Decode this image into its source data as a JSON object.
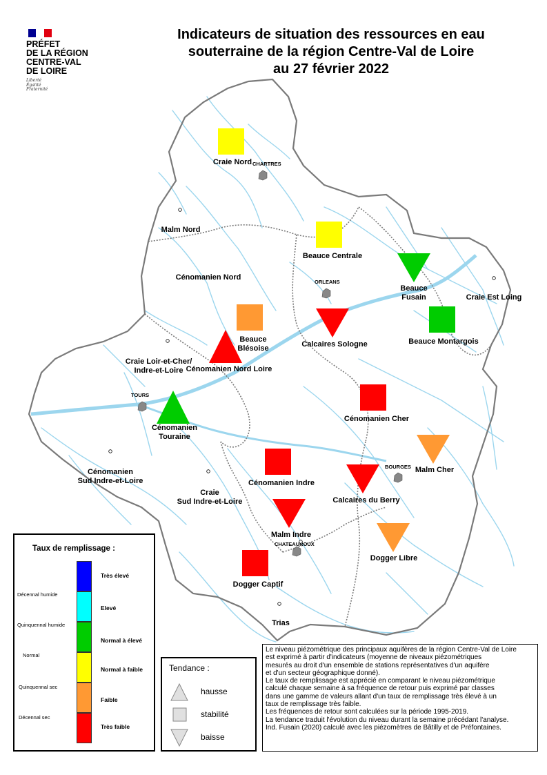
{
  "header": {
    "logo_text": "PRÉFET\nDE LA RÉGION\nCENTRE-VAL\nDE LOIRE",
    "motto": "Liberté\nÉgalité\nFraternité",
    "flag_colors": [
      "#000091",
      "#ffffff",
      "#e1000f"
    ],
    "title_lines": [
      "Indicateurs de situation des ressources en eau",
      "souterraine de la région Centre-Val de Loire",
      "au 27 février 2022"
    ]
  },
  "colors": {
    "tres_eleve": "#0000ff",
    "eleve": "#00ffff",
    "normal_a_eleve": "#00cc00",
    "normal_a_faible": "#ffff00",
    "faible": "#ff9933",
    "tres_faible": "#ff0000",
    "rivers": "#9cd6ee",
    "boundary": "#7a7a7a",
    "city": "#888888"
  },
  "cities": [
    {
      "name": "CHARTRES"
    },
    {
      "name": "ORLEANS"
    },
    {
      "name": "TOURS"
    },
    {
      "name": "BOURGES"
    },
    {
      "name": "CHATEAUROUX"
    }
  ],
  "aquifers": [
    {
      "name": "Craie Nord",
      "class": "normal_a_faible",
      "trend": "stabilite"
    },
    {
      "name": "Malm Nord",
      "class": null,
      "trend": null
    },
    {
      "name": "Beauce Centrale",
      "class": "normal_a_faible",
      "trend": "stabilite"
    },
    {
      "name": "Beauce\nFusain",
      "class": "normal_a_eleve",
      "trend": "baisse"
    },
    {
      "name": "Craie Est Loing",
      "class": null,
      "trend": null
    },
    {
      "name": "Cénomanien Nord",
      "class": null,
      "trend": null
    },
    {
      "name": "Beauce Montargois",
      "class": "normal_a_eleve",
      "trend": "stabilite"
    },
    {
      "name": "Calcaires Sologne",
      "class": "tres_faible",
      "trend": "baisse"
    },
    {
      "name": "Beauce\nBlésoise",
      "class": "faible",
      "trend": "stabilite"
    },
    {
      "name": "Cénomanien Nord Loire",
      "class": "tres_faible",
      "trend": "hausse"
    },
    {
      "name": "Craie Loir-et-Cher/\nIndre-et-Loire",
      "class": null,
      "trend": null
    },
    {
      "name": "Cénomanien\nTouraine",
      "class": "normal_a_eleve",
      "trend": "hausse"
    },
    {
      "name": "Cénomanien Cher",
      "class": "tres_faible",
      "trend": "stabilite"
    },
    {
      "name": "Malm Cher",
      "class": "faible",
      "trend": "baisse"
    },
    {
      "name": "Cénomanien\nSud Indre-et-Loire",
      "class": null,
      "trend": null
    },
    {
      "name": "Cénomanien Indre",
      "class": "tres_faible",
      "trend": "stabilite"
    },
    {
      "name": "Craie\nSud Indre-et-Loire",
      "class": null,
      "trend": null
    },
    {
      "name": "Calcaires du Berry",
      "class": "tres_faible",
      "trend": "baisse"
    },
    {
      "name": "Malm Indre",
      "class": "tres_faible",
      "trend": "baisse"
    },
    {
      "name": "Dogger Libre",
      "class": "faible",
      "trend": "baisse"
    },
    {
      "name": "Dogger Captif",
      "class": "tres_faible",
      "trend": "stabilite"
    },
    {
      "name": "Trias",
      "class": null,
      "trend": null
    }
  ],
  "legend": {
    "title": "Taux de remplissage :",
    "classes": [
      {
        "key": "tres_eleve",
        "label": "Très élevé"
      },
      {
        "key": "eleve",
        "label": "Elevé"
      },
      {
        "key": "normal_a_eleve",
        "label": "Normal à élevé"
      },
      {
        "key": "normal_a_faible",
        "label": "Normal à faible"
      },
      {
        "key": "faible",
        "label": "Faible"
      },
      {
        "key": "tres_faible",
        "label": "Très faible"
      }
    ],
    "frequencies": [
      "Décennal humide",
      "Quinquennal humide",
      "Normal",
      "Quinquennal sec",
      "Décennal sec"
    ]
  },
  "tendance": {
    "title": "Tendance :",
    "items": [
      {
        "key": "hausse",
        "label": "hausse"
      },
      {
        "key": "stabilite",
        "label": "stabilité"
      },
      {
        "key": "baisse",
        "label": "baisse"
      }
    ]
  },
  "notes": [
    "Le niveau piézométrique des principaux aquifères de la région Centre-Val de Loire",
    "est exprimé à partir d'indicateurs (moyenne de niveaux piézométriques",
    "mesurés au droit d'un ensemble de stations représentatives d'un aquifère",
    "et d'un secteur géographique donné).",
    "Le taux de remplissage est apprécié en comparant le niveau piézométrique",
    "calculé chaque semaine à sa fréquence de retour puis exprimé par classes",
    "dans une gamme de valeurs allant d'un taux de remplissage très élevé à un",
    "taux de remplissage très faible.",
    "Les fréquences de retour sont calculées sur la période 1995-2019.",
    "La tendance traduit l'évolution du niveau durant la semaine précédant l'analyse.",
    "Ind. Fusain (2020) calculé avec les piézomètres de Bâtilly et de Préfontaines."
  ]
}
